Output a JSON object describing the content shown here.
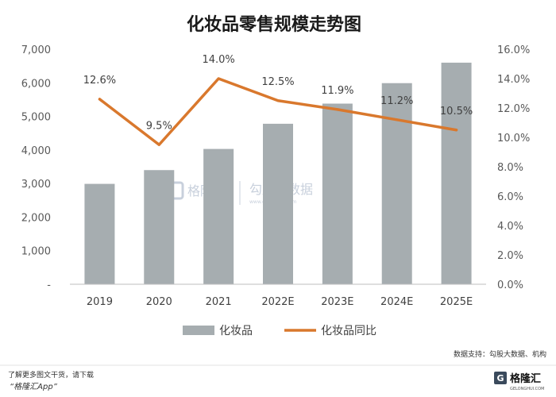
{
  "chart_data": {
    "type": "bar",
    "title": "化妆品零售规模走势图",
    "categories": [
      "2019",
      "2020",
      "2021",
      "2022E",
      "2023E",
      "2024E",
      "2025E"
    ],
    "series": [
      {
        "name": "化妆品",
        "type": "bar",
        "axis": "left",
        "color": "#a6adb0",
        "values": [
          2990,
          3400,
          4030,
          4780,
          5380,
          5990,
          6600
        ]
      },
      {
        "name": "化妆品同比",
        "type": "line",
        "axis": "right",
        "color": "#d9782d",
        "values": [
          12.6,
          9.5,
          14.0,
          12.5,
          11.9,
          11.2,
          10.5
        ],
        "labels": [
          "12.6%",
          "9.5%",
          "14.0%",
          "12.5%",
          "11.9%",
          "11.2%",
          "10.5%"
        ]
      }
    ],
    "ylim_left": [
      0,
      7000
    ],
    "ylim_right": [
      0,
      16
    ],
    "yticks_left": [
      "-",
      "1,000",
      "2,000",
      "3,000",
      "4,000",
      "5,000",
      "6,000",
      "7,000"
    ],
    "yticks_right": [
      "0.0%",
      "2.0%",
      "4.0%",
      "6.0%",
      "8.0%",
      "10.0%",
      "12.0%",
      "14.0%",
      "16.0%"
    ],
    "legend_position": "bottom",
    "grid": false
  },
  "source": "数据支持：勾股大数据、机构",
  "watermark": {
    "brand": "格隆汇",
    "name": "勾股大数据",
    "url": "www.gogudata.com"
  },
  "footer": {
    "note": "了解更多图文干货，请下载",
    "app": "“格隆汇App”",
    "brand": "格隆汇",
    "brand_sub": "GELONGHUI.COM"
  },
  "colors": {
    "bar": "#a6adb0",
    "line": "#d9782d",
    "axis": "#bfbfbf",
    "watermark": "#c8d0dc",
    "brand_dark": "#3a4a5c"
  }
}
